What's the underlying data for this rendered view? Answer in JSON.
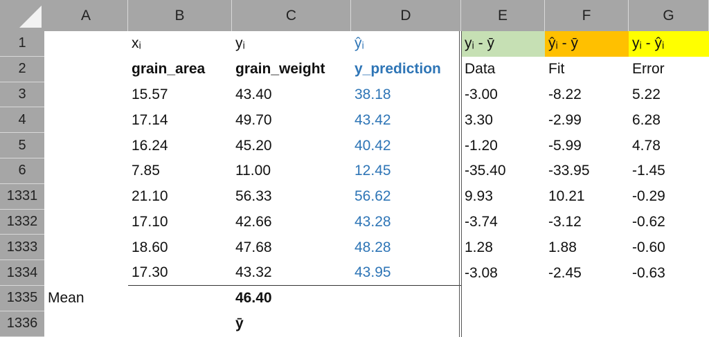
{
  "columns": [
    "A",
    "B",
    "C",
    "D",
    "E",
    "F",
    "G"
  ],
  "rows": [
    {
      "number": "1",
      "cells": [
        null,
        "xᵢ",
        "yᵢ",
        "ŷᵢ",
        "yᵢ - ȳ",
        "ŷᵢ - ȳ",
        "yᵢ - ŷᵢ"
      ]
    },
    {
      "number": "2",
      "cells": [
        null,
        "grain_area",
        "grain_weight",
        "y_prediction",
        "Data",
        "Fit",
        "Error"
      ]
    },
    {
      "number": "3",
      "cells": [
        null,
        "15.57",
        "43.40",
        "38.18",
        "-3.00",
        "-8.22",
        "5.22"
      ]
    },
    {
      "number": "4",
      "cells": [
        null,
        "17.14",
        "49.70",
        "43.42",
        "3.30",
        "-2.99",
        "6.28"
      ]
    },
    {
      "number": "5",
      "cells": [
        null,
        "16.24",
        "45.20",
        "40.42",
        "-1.20",
        "-5.99",
        "4.78"
      ]
    },
    {
      "number": "6",
      "cells": [
        null,
        "7.85",
        "11.00",
        "12.45",
        "-35.40",
        "-33.95",
        "-1.45"
      ]
    },
    {
      "number": "1331",
      "cells": [
        null,
        "21.10",
        "56.33",
        "56.62",
        "9.93",
        "10.21",
        "-0.29"
      ]
    },
    {
      "number": "1332",
      "cells": [
        null,
        "17.10",
        "42.66",
        "43.28",
        "-3.74",
        "-3.12",
        "-0.62"
      ]
    },
    {
      "number": "1333",
      "cells": [
        null,
        "18.60",
        "47.68",
        "48.28",
        "1.28",
        "1.88",
        "-0.60"
      ]
    },
    {
      "number": "1334",
      "cells": [
        null,
        "17.30",
        "43.32",
        "43.95",
        "-3.08",
        "-2.45",
        "-0.63"
      ]
    },
    {
      "number": "1335",
      "cells": [
        "Mean",
        null,
        "46.40",
        null,
        null,
        null,
        null
      ]
    },
    {
      "number": "1336",
      "cells": [
        null,
        null,
        "ȳ",
        null,
        null,
        null,
        null
      ]
    }
  ]
}
